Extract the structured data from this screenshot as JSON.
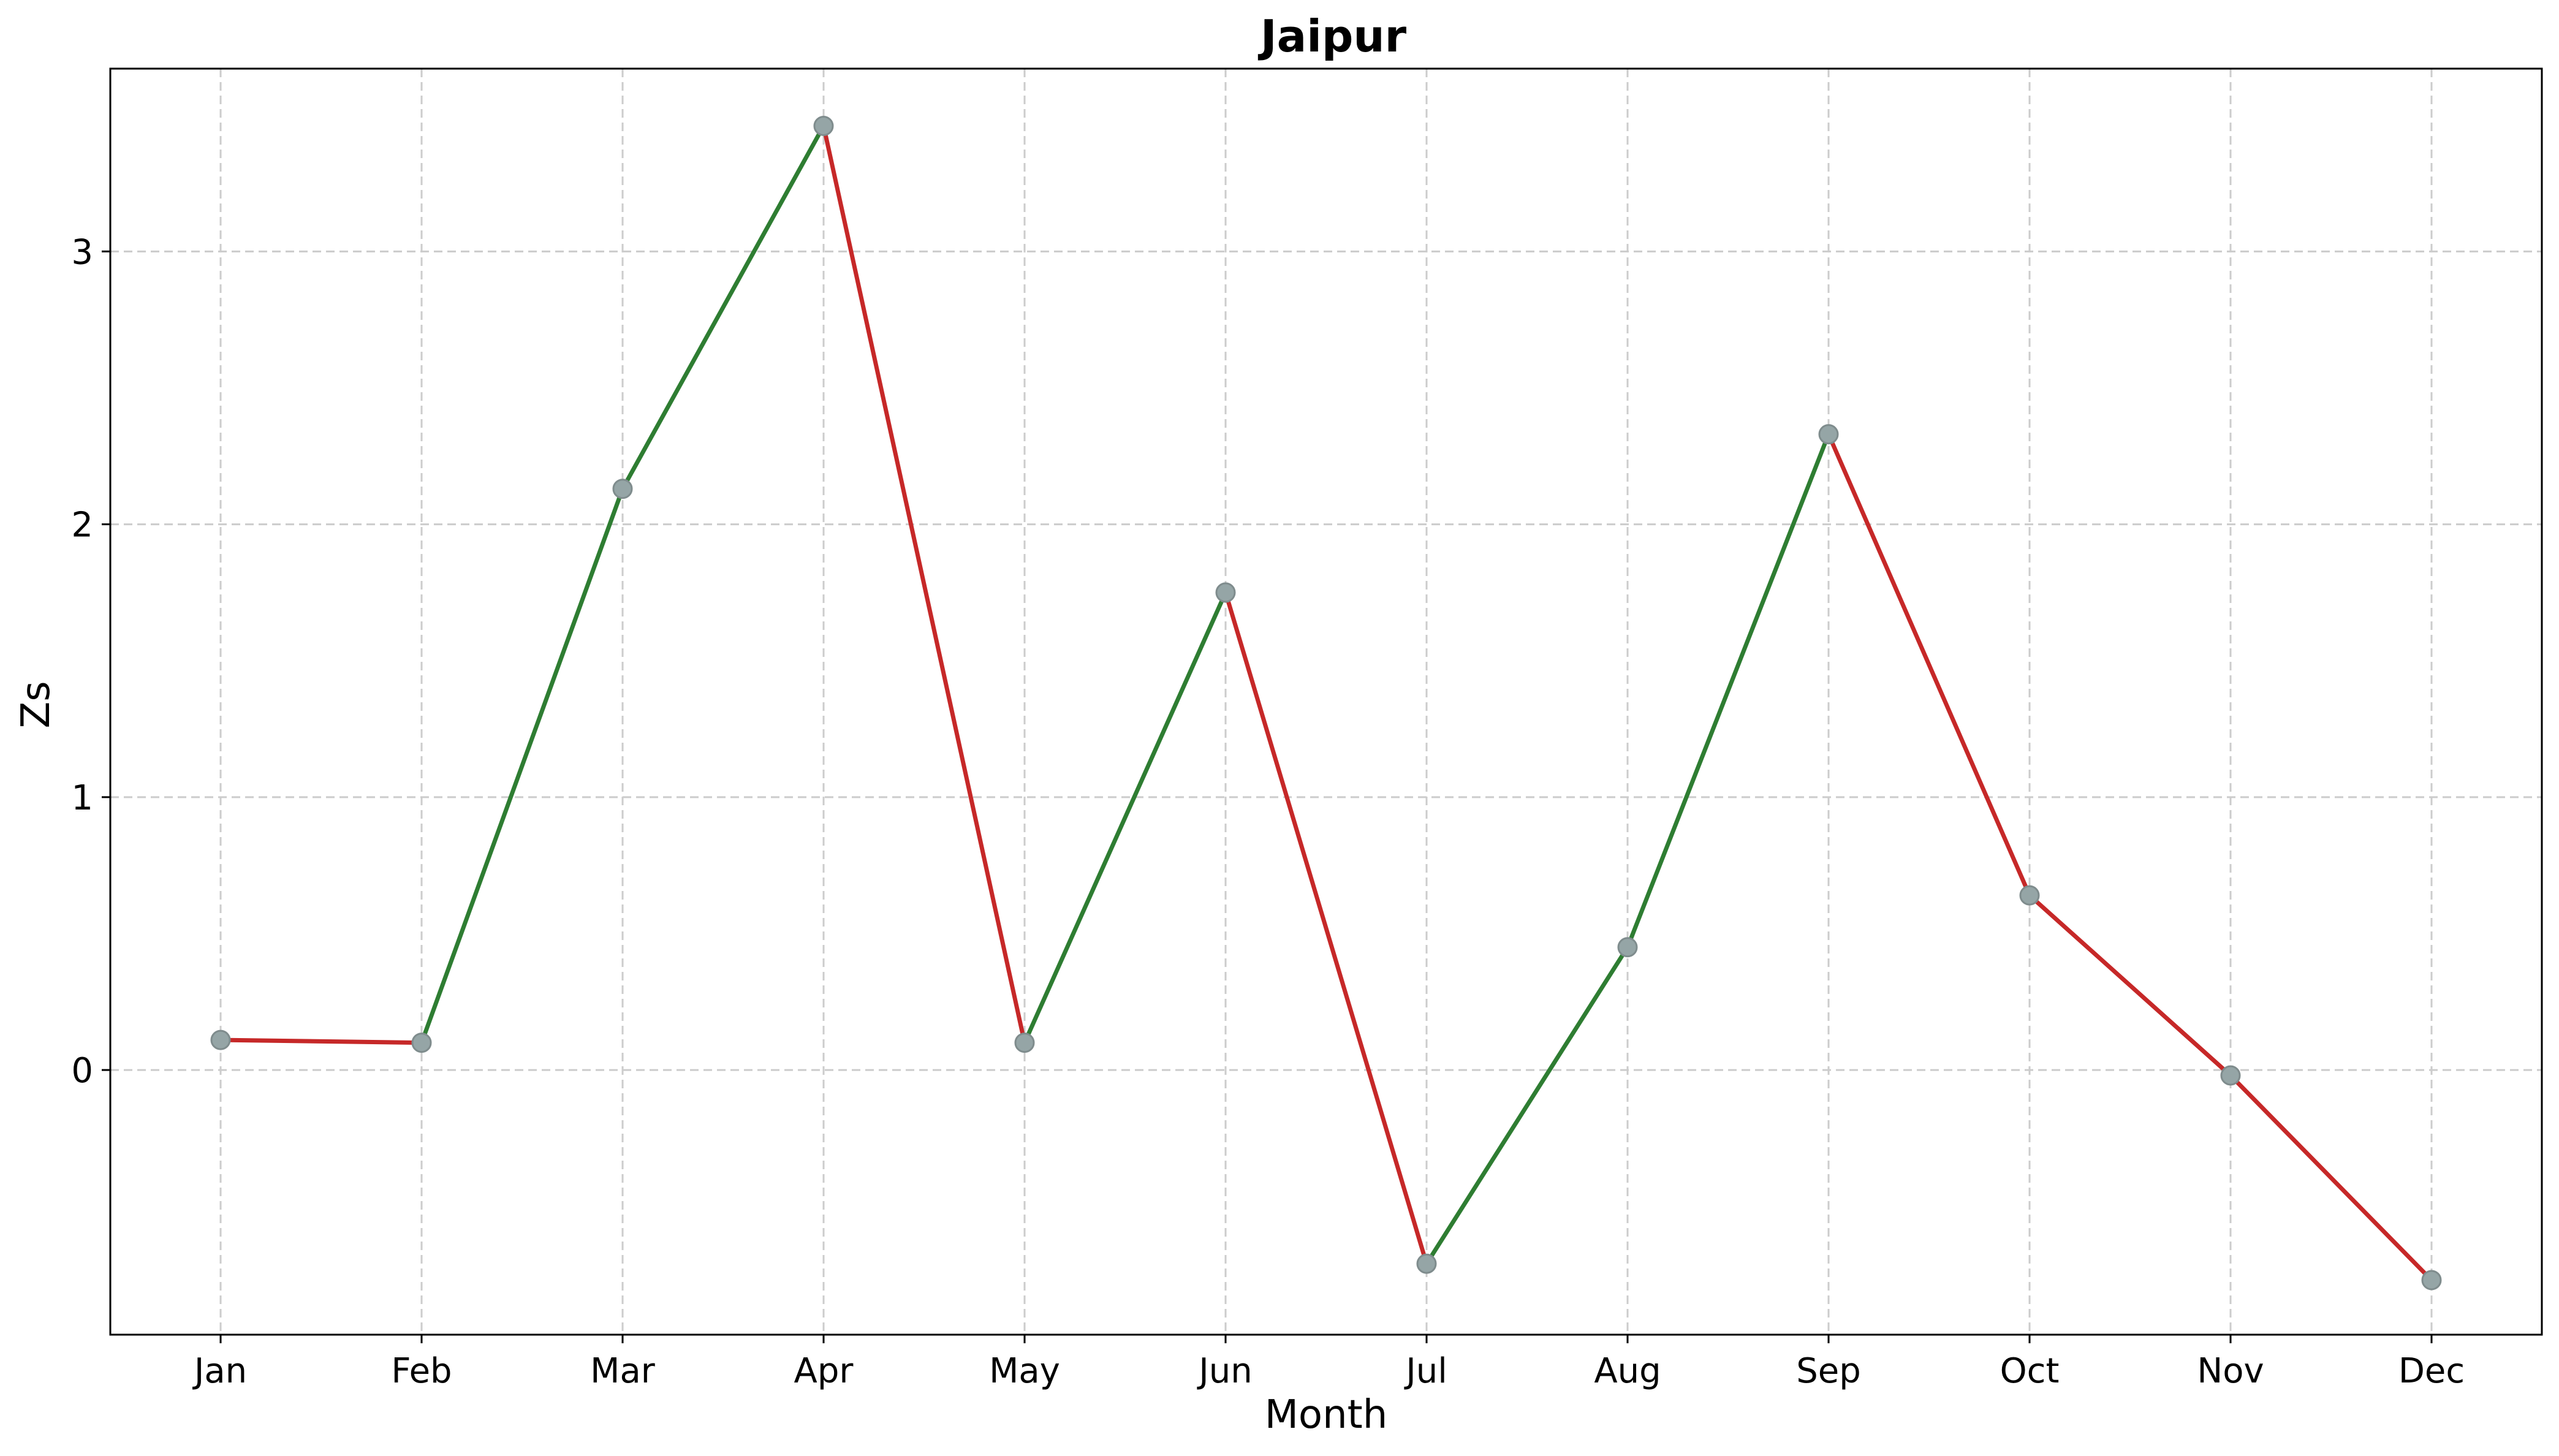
{
  "chart_data": {
    "type": "line",
    "title": "Jaipur",
    "xlabel": "Month",
    "ylabel": "Zs",
    "categories": [
      "Jan",
      "Feb",
      "Mar",
      "Apr",
      "May",
      "Jun",
      "Jul",
      "Aug",
      "Sep",
      "Oct",
      "Nov",
      "Dec"
    ],
    "values": [
      0.11,
      0.1,
      2.13,
      3.46,
      0.1,
      1.75,
      -0.71,
      0.45,
      2.33,
      0.64,
      -0.02,
      -0.77
    ],
    "ylim": [
      -0.97,
      3.67
    ],
    "yticks": [
      0,
      1,
      2,
      3
    ],
    "grid": true,
    "colors": {
      "increase": "#2e7d32",
      "decrease": "#c62828",
      "marker": "#95a5a6"
    }
  }
}
